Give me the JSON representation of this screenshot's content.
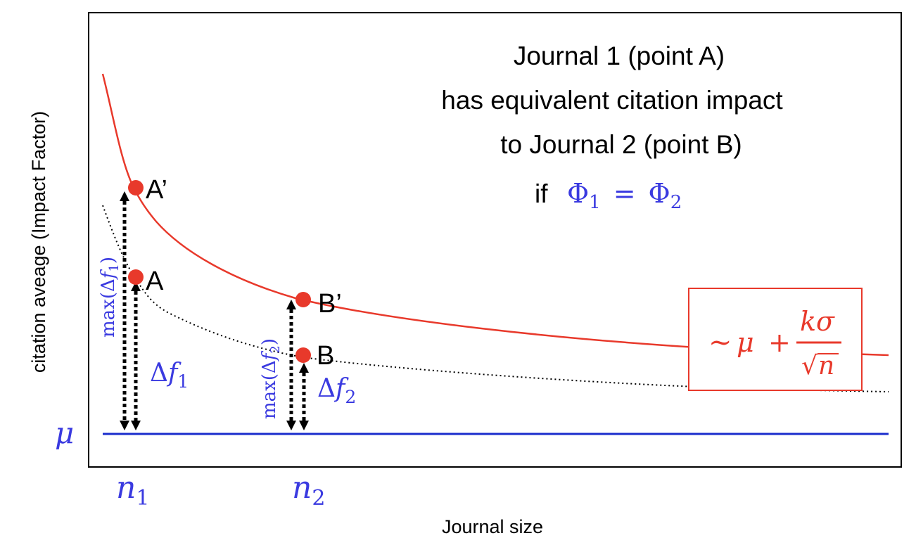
{
  "diagram": {
    "x_axis_label": "Journal size",
    "y_axis_label": "citation aveage (Impact Factor)",
    "baseline_label": "μ",
    "x_markers": [
      {
        "main": "n",
        "sub": "1"
      },
      {
        "main": "n",
        "sub": "2"
      }
    ],
    "annotation": {
      "line1": "Journal 1 (point A)",
      "line2": "has equivalent citation impact",
      "line3": "to Journal 2 (point B)",
      "line4_prefix": "if",
      "line4_formula": {
        "lhs": "Φ",
        "lhs_sub": "1",
        "op": "=",
        "rhs": "Φ",
        "rhs_sub": "2"
      }
    },
    "points": {
      "a_prime": "A’",
      "a": "A",
      "b_prime": "B’",
      "b": "B"
    },
    "measures": {
      "max_df1": {
        "pre": "max(Δ",
        "var": "f",
        "sub": "1",
        "post": ")"
      },
      "df1": {
        "pre": "Δ",
        "var": "f",
        "sub": "1"
      },
      "max_df2": {
        "pre": "max(Δ",
        "var": "f",
        "sub": "2",
        "post": ")"
      },
      "df2": {
        "pre": "Δ",
        "var": "f",
        "sub": "2"
      }
    },
    "formula_box": {
      "prefix": "~",
      "mu": "μ",
      "plus": "+",
      "numerator": "kσ",
      "radical": "√",
      "denominator": "n"
    },
    "colors": {
      "curve": "#e8392b",
      "baseline": "#1a2ccc",
      "math_blue": "#3a3ae0",
      "frame": "#000000",
      "dotted": "#000000"
    }
  }
}
